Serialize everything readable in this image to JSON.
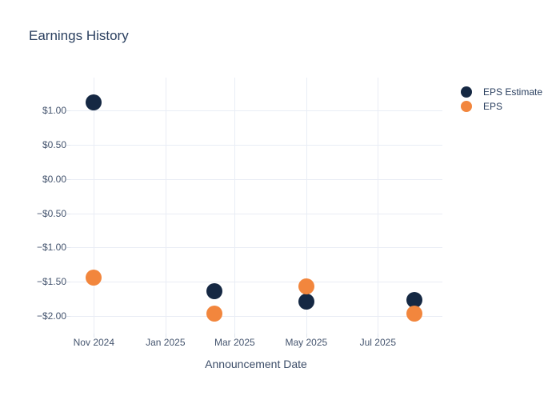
{
  "chart_data": {
    "type": "scatter",
    "title": "Earnings History",
    "xlabel": "Announcement Date",
    "ylabel": "",
    "grid": true,
    "legend_position": "right",
    "x_range": [
      "2024-10-12",
      "2025-08-25"
    ],
    "ylim": [
      -2.257,
      1.479
    ],
    "x_ticks": [
      {
        "date": "2024-11-01",
        "label": "Nov 2024"
      },
      {
        "date": "2025-01-01",
        "label": "Jan 2025"
      },
      {
        "date": "2025-03-01",
        "label": "Mar 2025"
      },
      {
        "date": "2025-05-01",
        "label": "May 2025"
      },
      {
        "date": "2025-07-01",
        "label": "Jul 2025"
      }
    ],
    "y_ticks": [
      {
        "value": 1.0,
        "label": "$1.00"
      },
      {
        "value": 0.5,
        "label": "$0.50"
      },
      {
        "value": 0.0,
        "label": "$0.00"
      },
      {
        "value": -0.5,
        "label": "−$0.50"
      },
      {
        "value": -1.0,
        "label": "−$1.00"
      },
      {
        "value": -1.5,
        "label": "−$1.50"
      },
      {
        "value": -2.0,
        "label": "−$2.00"
      }
    ],
    "series": [
      {
        "name": "EPS Estimate",
        "color": "#152843",
        "points": [
          {
            "date": "2024-11-01",
            "value": 1.12
          },
          {
            "date": "2025-02-12",
            "value": -1.64
          },
          {
            "date": "2025-05-01",
            "value": -1.79
          },
          {
            "date": "2025-08-01",
            "value": -1.77
          }
        ]
      },
      {
        "name": "EPS",
        "color": "#f2863d",
        "points": [
          {
            "date": "2024-11-01",
            "value": -1.44
          },
          {
            "date": "2025-02-12",
            "value": -1.96
          },
          {
            "date": "2025-05-01",
            "value": -1.57
          },
          {
            "date": "2025-08-01",
            "value": -1.96
          }
        ]
      }
    ]
  }
}
